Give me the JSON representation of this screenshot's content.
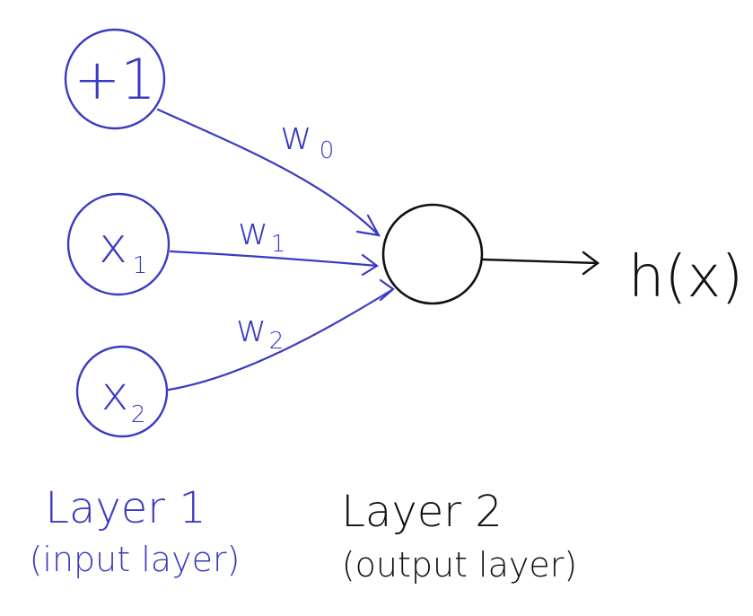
{
  "colors": {
    "input_ink": "#3a3ac4",
    "output_ink": "#111111"
  },
  "input_nodes": [
    {
      "id": "bias",
      "label": "+1",
      "sub": ""
    },
    {
      "id": "x1",
      "label": "x",
      "sub": "1"
    },
    {
      "id": "x2",
      "label": "x",
      "sub": "2"
    }
  ],
  "weights": [
    {
      "label": "w",
      "sub": "0"
    },
    {
      "label": "w",
      "sub": "1"
    },
    {
      "label": "w",
      "sub": "2"
    }
  ],
  "output": {
    "label": "h(x)"
  },
  "layers": {
    "input": {
      "title": "Layer 1",
      "subtitle": "(input layer)"
    },
    "output": {
      "title": "Layer 2",
      "subtitle": "(output layer)"
    }
  }
}
